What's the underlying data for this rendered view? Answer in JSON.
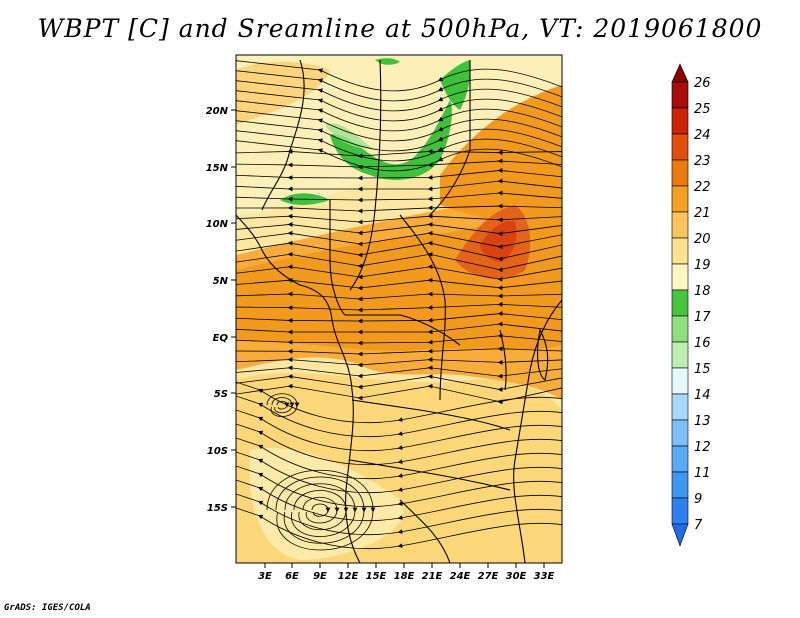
{
  "title": "WBPT [C] and Sreamline at 500hPa, VT: 2019061800",
  "credit": "GrADS: IGES/COLA",
  "map": {
    "lat_labels": [
      "20N",
      "15N",
      "10N",
      "5N",
      "EQ",
      "5S",
      "10S",
      "15S"
    ],
    "lon_labels": [
      "3E",
      "6E",
      "9E",
      "12E",
      "15E",
      "18E",
      "21E",
      "24E",
      "27E",
      "30E",
      "33E"
    ]
  },
  "colorbar": {
    "levels": [
      "7",
      "9",
      "11",
      "12",
      "13",
      "14",
      "15",
      "16",
      "17",
      "18",
      "19",
      "20",
      "21",
      "22",
      "23",
      "24",
      "25",
      "26"
    ],
    "colors": [
      "#1f6ee8",
      "#2b82f0",
      "#3c96f2",
      "#5aaaf5",
      "#7dc0f8",
      "#a8d8fb",
      "#e6f8fc",
      "#bff0b3",
      "#8ee07f",
      "#45c43d",
      "#fbf6c2",
      "#fde28e",
      "#fbc45d",
      "#f4a024",
      "#ec7b0d",
      "#e2500c",
      "#cc2406",
      "#a80d07",
      "#8a0000"
    ]
  }
}
